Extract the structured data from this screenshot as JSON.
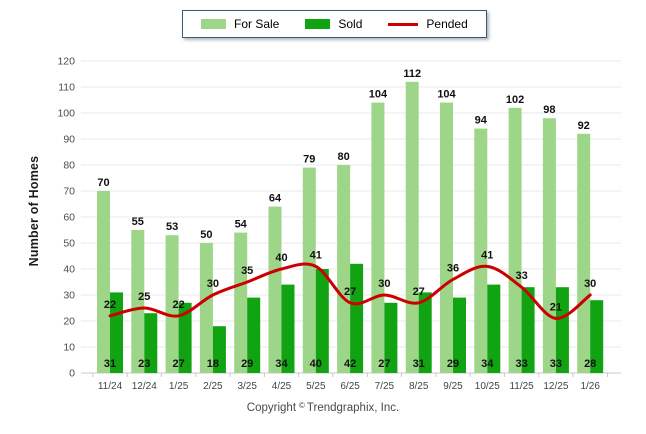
{
  "chart_data": {
    "type": "bar",
    "subtype": "grouped-bars-with-line-overlay",
    "title": "",
    "xlabel": "",
    "ylabel": "Number of Homes",
    "ylim": [
      0,
      120
    ],
    "ytick_step": 10,
    "grid": true,
    "legend_position": "top-center",
    "categories": [
      "11/24",
      "12/24",
      "1/25",
      "2/25",
      "3/25",
      "4/25",
      "5/25",
      "6/25",
      "7/25",
      "8/25",
      "9/25",
      "10/25",
      "11/25",
      "12/25",
      "1/26"
    ],
    "series": [
      {
        "name": "For Sale",
        "type": "bar",
        "color": "#9DD688",
        "values": [
          70,
          55,
          53,
          50,
          54,
          64,
          79,
          80,
          104,
          112,
          104,
          94,
          102,
          98,
          92
        ]
      },
      {
        "name": "Sold",
        "type": "bar",
        "color": "#11A311",
        "values": [
          31,
          23,
          27,
          18,
          29,
          34,
          40,
          42,
          27,
          31,
          29,
          34,
          33,
          33,
          28
        ]
      },
      {
        "name": "Pended",
        "type": "line",
        "color": "#CC0000",
        "values": [
          22,
          25,
          22,
          30,
          35,
          40,
          41,
          27,
          30,
          27,
          36,
          41,
          33,
          21,
          30
        ]
      }
    ]
  },
  "colors": {
    "grid_line": "#e8e8e8",
    "axis_line": "#c9c9c9",
    "y_tick_text": "#4d4d4d",
    "x_tick_text": "#3c4650",
    "value_label_text": "#111111",
    "legend_border": "#3a5a78"
  },
  "footer": {
    "copyright_prefix": "Copyright",
    "copyright_symbol": "©",
    "copyright_suffix": "Trendgraphix, Inc."
  }
}
